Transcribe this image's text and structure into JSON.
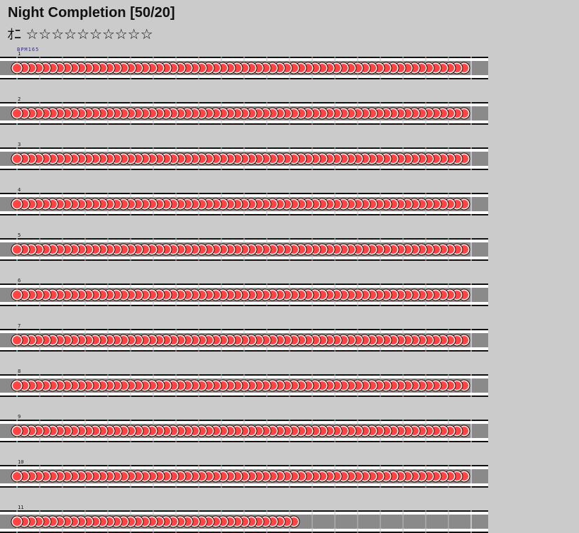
{
  "chart": {
    "title": "Night Completion [50/20]",
    "difficulty_glyph": "ｵﾆ",
    "stars": "☆☆☆☆☆☆☆☆☆☆",
    "bpm_label": "BPM165"
  },
  "colors": {
    "background": "#cbcbcb",
    "lane": "#8a8a8a",
    "lane_border": "#111111",
    "beat_line": "#bdbdbd",
    "note_fill": "#ff4444",
    "note_edge": "#3a0000",
    "note_ring": "#ffffff"
  },
  "measures": [
    {
      "number": "1",
      "notes": 64
    },
    {
      "number": "2",
      "notes": 64
    },
    {
      "number": "3",
      "notes": 64
    },
    {
      "number": "4",
      "notes": 64
    },
    {
      "number": "5",
      "notes": 64
    },
    {
      "number": "6",
      "notes": 64
    },
    {
      "number": "7",
      "notes": 64
    },
    {
      "number": "8",
      "notes": 64
    },
    {
      "number": "9",
      "notes": 64
    },
    {
      "number": "10",
      "notes": 64
    },
    {
      "number": "11",
      "notes": 40
    }
  ]
}
